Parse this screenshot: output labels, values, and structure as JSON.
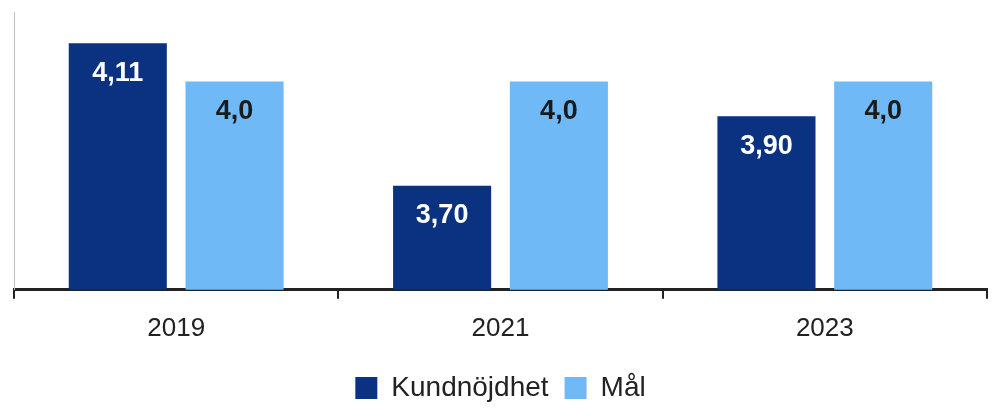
{
  "chart_data": {
    "type": "bar",
    "categories": [
      "2019",
      "2021",
      "2023"
    ],
    "series": [
      {
        "name": "Kundnöjdhet",
        "color": "#0a3281",
        "values": [
          4.11,
          3.7,
          3.9
        ],
        "value_labels": [
          "4,11",
          "3,70",
          "3,90"
        ]
      },
      {
        "name": "Mål",
        "color": "#6fb9f7",
        "values": [
          4.0,
          4.0,
          4.0
        ],
        "value_labels": [
          "4,0",
          "4,0",
          "4,0"
        ]
      }
    ],
    "ylim": [
      3.4,
      4.2
    ],
    "grid": false,
    "legend": "bottom",
    "data_labels": true,
    "tick_labels": "x"
  }
}
